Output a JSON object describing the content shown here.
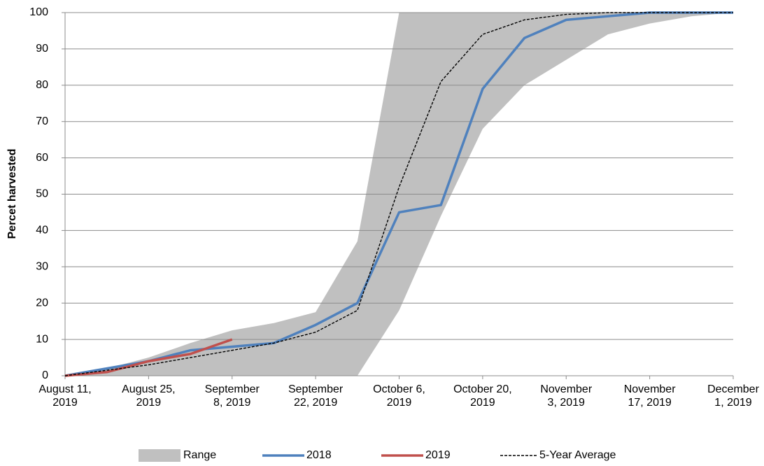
{
  "chart_data": {
    "type": "line",
    "y_label": "Percet harvested",
    "categories": [
      "August 11,\n2019",
      null,
      "August 25,\n2019",
      null,
      "September\n8, 2019",
      null,
      "September\n22, 2019",
      null,
      "October 6,\n2019",
      null,
      "October 20,\n2019",
      null,
      "November\n3, 2019",
      null,
      "November\n17, 2019",
      null,
      "December\n1, 2019"
    ],
    "range": {
      "name": "Range",
      "color": "#c0c0c0",
      "low": [
        0,
        0,
        0,
        0,
        0,
        0,
        0,
        0,
        18,
        44,
        68,
        80,
        87,
        94,
        97,
        99,
        100
      ],
      "high": [
        0,
        2,
        5,
        9,
        12.5,
        14.5,
        17.5,
        37,
        100,
        100,
        100,
        100,
        100,
        100,
        100,
        100,
        100
      ]
    },
    "series": [
      {
        "name": "2018",
        "color": "#4f81bd",
        "values": [
          0,
          2,
          4,
          7,
          8,
          9,
          14,
          20,
          45,
          47,
          79,
          93,
          98,
          99,
          100,
          100,
          100
        ]
      },
      {
        "name": "2019",
        "color": "#c0504d",
        "values": [
          0,
          1,
          4,
          6,
          10,
          null,
          null,
          null,
          null,
          null,
          null,
          null,
          null,
          null,
          null,
          null,
          null
        ]
      },
      {
        "name": "5-Year Average",
        "color": "#000000",
        "dashed": true,
        "values": [
          0,
          1.5,
          3,
          5,
          7,
          9,
          12,
          18,
          52,
          81,
          94,
          98,
          99.5,
          100,
          100,
          100,
          100
        ]
      }
    ],
    "ylim": [
      0,
      100
    ],
    "yticks": [
      0,
      10,
      20,
      30,
      40,
      50,
      60,
      70,
      80,
      90,
      100
    ],
    "grid": true
  }
}
